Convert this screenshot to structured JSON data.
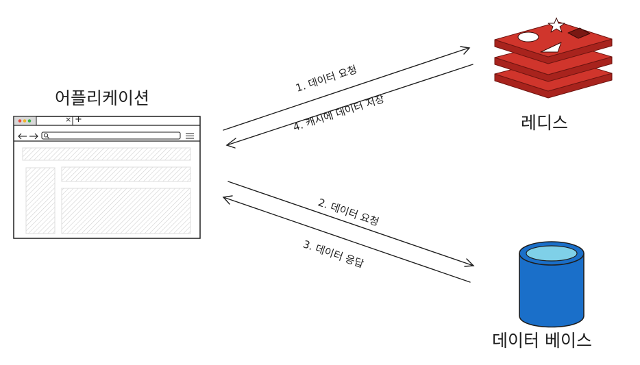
{
  "nodes": {
    "application": {
      "label": "어플리케이션"
    },
    "redis": {
      "label": "레디스"
    },
    "database": {
      "label": "데이터 베이스"
    }
  },
  "edges": [
    {
      "label": "1. 데이터 요청"
    },
    {
      "label": "4. 캐시에 데이터 저장"
    },
    {
      "label": "2. 데이터 요청"
    },
    {
      "label": "3. 데이터 응답"
    }
  ],
  "browser": {
    "tab_close": "×",
    "tab_add": "+"
  },
  "colors": {
    "stroke": "#1e1e1e",
    "redis_red": "#d0352c",
    "redis_dark": "#a8231d",
    "db_blue": "#1a6fc9",
    "db_top": "#7fd0e8",
    "hatch": "#d6d6d6",
    "dot_red": "#e84a3c",
    "dot_yellow": "#f0b429",
    "dot_green": "#3bb34a"
  }
}
